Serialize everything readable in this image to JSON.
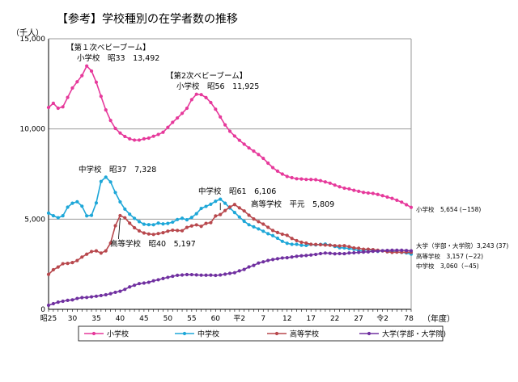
{
  "chart_data": {
    "type": "line",
    "title": "【参考】学校種別の在学者数の推移",
    "ylabel": "（千人）",
    "xlabel": "（年度）",
    "ylim": [
      0,
      15000
    ],
    "yticks": [
      0,
      5000,
      10000,
      15000
    ],
    "ytick_labels": [
      "0",
      "5,000",
      "10,000",
      "15,000"
    ],
    "grid": "horizontal",
    "legend_position": "bottom",
    "x_tick_labels": [
      {
        "label": "昭25",
        "x": 0
      },
      {
        "label": "30",
        "x": 5
      },
      {
        "label": "35",
        "x": 10
      },
      {
        "label": "40",
        "x": 15
      },
      {
        "label": "45",
        "x": 20
      },
      {
        "label": "50",
        "x": 25
      },
      {
        "label": "55",
        "x": 30
      },
      {
        "label": "60",
        "x": 35
      },
      {
        "label": "平2",
        "x": 40
      },
      {
        "label": "7",
        "x": 45
      },
      {
        "label": "12",
        "x": 50
      },
      {
        "label": "17",
        "x": 55
      },
      {
        "label": "22",
        "x": 60
      },
      {
        "label": "27",
        "x": 65
      },
      {
        "label": "令2",
        "x": 70
      },
      {
        "label": "7",
        "x": 75
      },
      {
        "label": "8",
        "x": 76
      }
    ],
    "series": [
      {
        "name": "小学校",
        "color": "#e6399b",
        "values": [
          11191,
          11423,
          11149,
          11225,
          11750,
          12267,
          12616,
          12956,
          13492,
          13211,
          12591,
          11811,
          11056,
          10472,
          10030,
          9776,
          9584,
          9453,
          9383,
          9384,
          9454,
          9494,
          9596,
          9696,
          9816,
          10088,
          10365,
          10609,
          10866,
          11146,
          11627,
          11925,
          11902,
          11739,
          11465,
          11095,
          10666,
          10226,
          9873,
          9607,
          9373,
          9157,
          8947,
          8769,
          8582,
          8370,
          8105,
          7855,
          7663,
          7500,
          7366,
          7297,
          7239,
          7226,
          7200,
          7197,
          7187,
          7133,
          7064,
          6993,
          6887,
          6794,
          6715,
          6676,
          6600,
          6543,
          6483,
          6448,
          6427,
          6369,
          6301,
          6223,
          6151,
          6049,
          5942,
          5799,
          5654
        ]
      },
      {
        "name": "中学校",
        "color": "#1ea7d8",
        "values": [
          5333,
          5188,
          5076,
          5187,
          5664,
          5884,
          5963,
          5718,
          5181,
          5210,
          5900,
          7087,
          7328,
          7060,
          6474,
          5957,
          5555,
          5271,
          5043,
          4865,
          4717,
          4694,
          4688,
          4780,
          4735,
          4762,
          4833,
          4978,
          5048,
          4966,
          5094,
          5300,
          5594,
          5706,
          5828,
          5990,
          6106,
          5882,
          5619,
          5369,
          5119,
          4880,
          4687,
          4573,
          4458,
          4329,
          4193,
          4085,
          3942,
          3769,
          3660,
          3605,
          3604,
          3553,
          3541,
          3597,
          3573,
          3602,
          3615,
          3562,
          3486,
          3416,
          3404,
          3371,
          3329,
          3256,
          3245,
          3319,
          3270,
          3213,
          3246,
          3197,
          3192,
          3180,
          3156,
          3130,
          3060
        ]
      },
      {
        "name": "高等学校",
        "color": "#b8484d",
        "values": [
          1935,
          2193,
          2344,
          2528,
          2545,
          2593,
          2703,
          2897,
          3057,
          3203,
          3239,
          3119,
          3240,
          3674,
          4634,
          5197,
          5074,
          4775,
          4521,
          4349,
          4232,
          4178,
          4151,
          4201,
          4249,
          4333,
          4386,
          4372,
          4357,
          4541,
          4622,
          4682,
          4601,
          4762,
          4805,
          5178,
          5257,
          5476,
          5671,
          5809,
          5624,
          5455,
          5218,
          5010,
          4862,
          4725,
          4547,
          4371,
          4258,
          4165,
          4104,
          3929,
          3809,
          3715,
          3672,
          3606,
          3597,
          3581,
          3564,
          3555,
          3530,
          3515,
          3525,
          3475,
          3405,
          3385,
          3330,
          3329,
          3310,
          3275,
          3241,
          3192,
          3158,
          3171,
          3164,
          3170,
          3157
        ]
      },
      {
        "name": "大学(学部・大学院)",
        "color": "#7030a0",
        "values": [
          225,
          313,
          399,
          447,
          499,
          524,
          602,
          650,
          657,
          692,
          725,
          764,
          808,
          869,
          943,
          1002,
          1105,
          1243,
          1336,
          1424,
          1454,
          1497,
          1582,
          1638,
          1708,
          1771,
          1832,
          1886,
          1904,
          1925,
          1922,
          1909,
          1895,
          1891,
          1896,
          1881,
          1905,
          1948,
          1994,
          2029,
          2133,
          2212,
          2352,
          2436,
          2567,
          2633,
          2709,
          2759,
          2805,
          2847,
          2860,
          2900,
          2940,
          2968,
          2982,
          3013,
          3043,
          3090,
          3120,
          3108,
          3080,
          3090,
          3086,
          3122,
          3133,
          3158,
          3173,
          3186,
          3218,
          3227,
          3250,
          3264,
          3275,
          3277,
          3275,
          3261,
          3243
        ]
      }
    ],
    "annotations": [
      {
        "text": "【第１次ベビーブーム】",
        "series": 0,
        "index": 8
      },
      {
        "text": "小学校　昭33　13,492",
        "series": 0,
        "index": 8
      },
      {
        "text": "【第2次ベビーブーム】",
        "series": 0,
        "index": 31
      },
      {
        "text": "小学校　昭56　11,925",
        "series": 0,
        "index": 31
      },
      {
        "text": "中学校　昭37　7,328",
        "series": 1,
        "index": 12
      },
      {
        "text": "中学校　昭61　6,106",
        "series": 1,
        "index": 36
      },
      {
        "text": "高等学校　平元　5,809",
        "series": 2,
        "index": 39
      },
      {
        "text": "高等学校　昭40　5,197",
        "series": 2,
        "index": 15
      }
    ],
    "end_labels": [
      {
        "series": 0,
        "text": "小学校　5,654 (−158)"
      },
      {
        "series": 3,
        "text": "大学（学部・大学院）3,243 (37)"
      },
      {
        "series": 2,
        "text": "高等学校　3,157 (−22)"
      },
      {
        "series": 1,
        "text": "中学校　3,060（−45)"
      }
    ]
  }
}
